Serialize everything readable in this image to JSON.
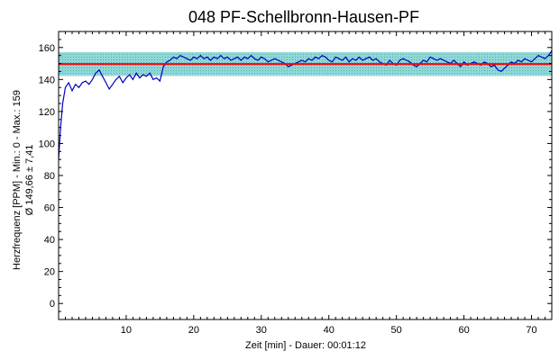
{
  "chart_data": {
    "type": "line",
    "title": "048 PF-Schellbronn-Hausen-PF",
    "xlabel": "Zeit [min] - Dauer: 00:01:12",
    "ylabel_line1": "Herzfrequenz [PPM] - Min.: 0 - Max.: 159",
    "ylabel_line2": "Ø 149,66 ± 7,41",
    "xlim": [
      0,
      73
    ],
    "ylim": [
      -10,
      170
    ],
    "xticks": [
      10,
      20,
      30,
      40,
      50,
      60,
      70
    ],
    "yticks": [
      0,
      20,
      40,
      60,
      80,
      100,
      120,
      140,
      160
    ],
    "grid": false,
    "mean": 149.66,
    "std": 7.41,
    "band": [
      142.25,
      157.07
    ],
    "colors": {
      "series": "#0000c0",
      "mean": "#ff0000",
      "band": "#8fd8d8",
      "band_dots": "#5aa8a8"
    },
    "series": [
      {
        "x": [
          0,
          0.3,
          0.6,
          1,
          1.5,
          2,
          2.5,
          3,
          3.5,
          4,
          4.5,
          5,
          5.5,
          6,
          6.5,
          7,
          7.5,
          8,
          8.5,
          9,
          9.5,
          10,
          10.5,
          11,
          11.5,
          12,
          12.5,
          13,
          13.5,
          14,
          14.5,
          15,
          15.5,
          16,
          16.5,
          17,
          17.5,
          18,
          18.5,
          19,
          19.5,
          20,
          20.5,
          21,
          21.5,
          22,
          22.5,
          23,
          23.5,
          24,
          24.5,
          25,
          25.5,
          26,
          26.5,
          27,
          27.5,
          28,
          28.5,
          29,
          29.5,
          30,
          30.5,
          31,
          31.5,
          32,
          32.5,
          33,
          33.5,
          34,
          34.5,
          35,
          35.5,
          36,
          36.5,
          37,
          37.5,
          38,
          38.5,
          39,
          39.5,
          40,
          40.5,
          41,
          41.5,
          42,
          42.5,
          43,
          43.5,
          44,
          44.5,
          45,
          45.5,
          46,
          46.5,
          47,
          47.5,
          48,
          48.5,
          49,
          49.5,
          50,
          50.5,
          51,
          51.5,
          52,
          52.5,
          53,
          53.5,
          54,
          54.5,
          55,
          55.5,
          56,
          56.5,
          57,
          57.5,
          58,
          58.5,
          59,
          59.5,
          60,
          60.5,
          61,
          61.5,
          62,
          62.5,
          63,
          63.5,
          64,
          64.5,
          65,
          65.5,
          66,
          66.5,
          67,
          67.5,
          68,
          68.5,
          69,
          69.5,
          70,
          70.5,
          71,
          71.5,
          72,
          72.5,
          73
        ],
        "y": [
          90,
          110,
          125,
          135,
          138,
          133,
          137,
          135,
          138,
          139,
          137,
          140,
          144,
          146,
          142,
          138,
          134,
          137,
          140,
          142,
          138,
          141,
          143,
          140,
          144,
          141,
          143,
          142,
          144,
          140,
          141,
          139,
          148,
          151,
          152,
          154,
          153,
          155,
          154,
          153,
          152,
          154,
          153,
          155,
          153,
          154,
          152,
          154,
          153,
          155,
          153,
          154,
          152,
          153,
          154,
          152,
          154,
          153,
          155,
          153,
          152,
          154,
          153,
          151,
          152,
          153,
          152,
          151,
          150,
          148,
          149,
          150,
          151,
          152,
          151,
          153,
          152,
          154,
          153,
          155,
          154,
          152,
          151,
          154,
          153,
          152,
          154,
          151,
          153,
          152,
          154,
          152,
          153,
          154,
          152,
          153,
          151,
          150,
          149,
          152,
          150,
          149,
          152,
          153,
          152,
          151,
          149,
          148,
          150,
          152,
          151,
          154,
          153,
          152,
          153,
          152,
          151,
          150,
          152,
          150,
          148,
          151,
          149,
          150,
          151,
          150,
          149,
          151,
          150,
          148,
          149,
          146,
          145,
          147,
          149,
          151,
          150,
          152,
          151,
          153,
          152,
          151,
          153,
          155,
          154,
          153,
          155,
          158
        ]
      }
    ]
  }
}
